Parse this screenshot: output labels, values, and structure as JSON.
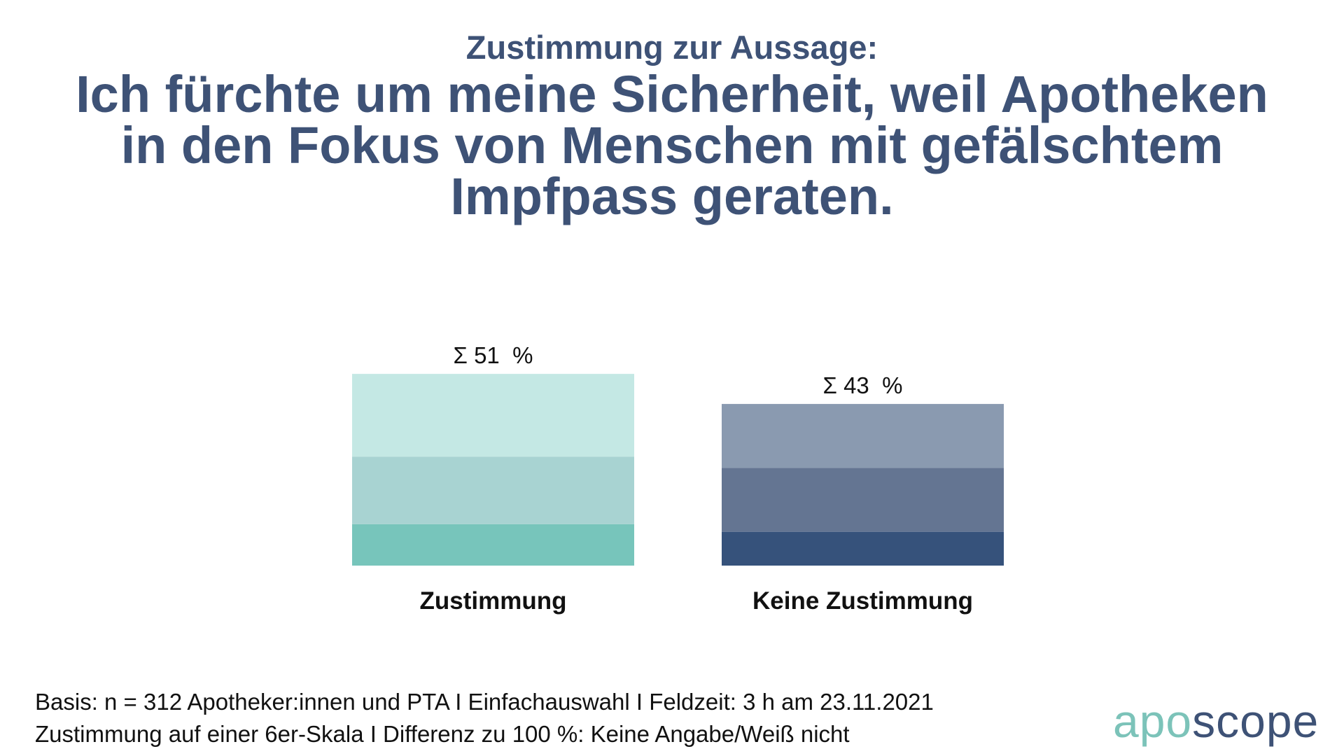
{
  "header": {
    "subtitle": "Zustimmung zur Aussage:",
    "title_lines": [
      "Ich fürchte um meine Sicherheit, weil Apotheken",
      "in den Fokus von Menschen mit gefälschtem",
      "Impfpass geraten."
    ]
  },
  "chart_data": {
    "type": "bar",
    "stacked": true,
    "ylim": [
      0,
      100
    ],
    "categories": [
      "Zustimmung",
      "Keine Zustimmung"
    ],
    "totals": [
      51,
      43
    ],
    "total_labels": [
      "Σ 51  %",
      "Σ 43  %"
    ],
    "segments": [
      {
        "category": "Zustimmung",
        "values": [
          11,
          18,
          22
        ],
        "colors": [
          "#77c5bb",
          "#a8d3d2",
          "#c4e8e4"
        ]
      },
      {
        "category": "Keine Zustimmung",
        "values": [
          9,
          17,
          17
        ],
        "colors": [
          "#36527b",
          "#647592",
          "#8a9ab0"
        ]
      }
    ],
    "grid": false,
    "legend": "none"
  },
  "footer": {
    "lines": [
      "Basis: n = 312 Apotheker:innen und PTA I Einfachauswahl I Feldzeit: 3 h am 23.11.2021",
      "Zustimmung auf einer 6er-Skala I Differenz zu 100 %: Keine Angabe/Weiß nicht"
    ]
  },
  "logo": {
    "part1": "apo",
    "part2": "scope",
    "colors": [
      "#7cc3b9",
      "#3e5276"
    ]
  }
}
